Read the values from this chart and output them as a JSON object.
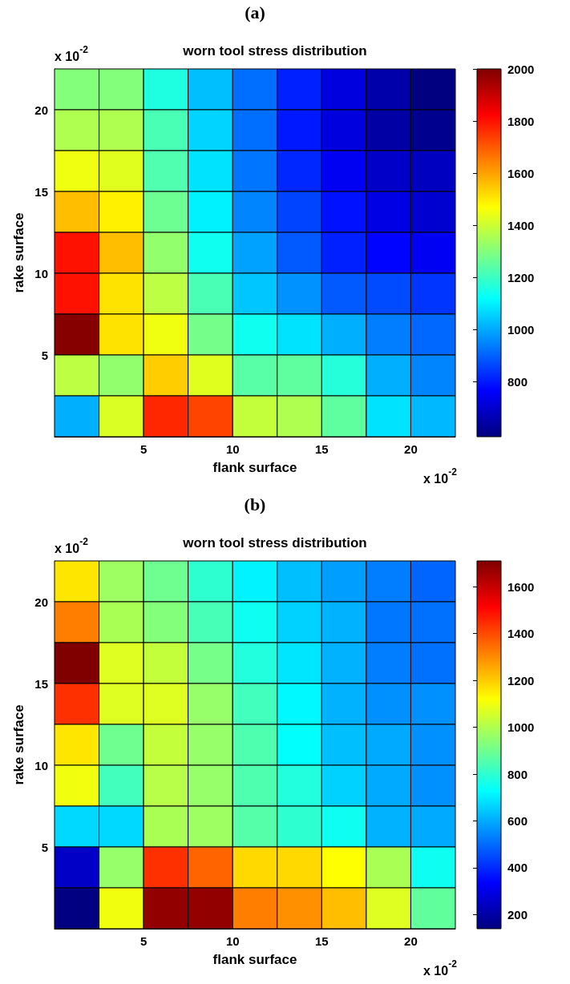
{
  "chart_data": [
    {
      "type": "heatmap",
      "title": "worn tool stress distribution",
      "xlabel": "flank surface",
      "ylabel": "rake surface",
      "annotations": [
        "(a)",
        "x 10$^{-2}$",
        "x 10$^{-2}$"
      ],
      "xlim": [
        0,
        22.5
      ],
      "xticks": [
        5,
        10,
        15,
        20
      ],
      "ylim": [
        0,
        22.5
      ],
      "yticks": [
        5,
        10,
        15,
        20
      ],
      "clim": [
        590,
        2000
      ],
      "cticks": [
        800,
        1000,
        1200,
        1400,
        1600,
        1800,
        2000
      ],
      "cells": [
        [
          1300,
          1300,
          1160,
          1030,
          920,
          810,
          720,
          650,
          590
        ],
        [
          1360,
          1360,
          1220,
          1060,
          920,
          800,
          720,
          640,
          610
        ],
        [
          1450,
          1430,
          1230,
          1080,
          930,
          820,
          750,
          690,
          680
        ],
        [
          1560,
          1490,
          1270,
          1100,
          950,
          860,
          790,
          730,
          700
        ],
        [
          1800,
          1560,
          1320,
          1140,
          990,
          890,
          810,
          770,
          750
        ],
        [
          1800,
          1510,
          1380,
          1220,
          1040,
          970,
          890,
          870,
          840
        ],
        [
          1990,
          1510,
          1450,
          1280,
          1140,
          1080,
          1010,
          940,
          910
        ],
        [
          1380,
          1320,
          1540,
          1430,
          1240,
          1250,
          1170,
          1010,
          950
        ],
        [
          1010,
          1420,
          1770,
          1730,
          1390,
          1360,
          1250,
          1080,
          1020
        ]
      ]
    },
    {
      "type": "heatmap",
      "title": "worn tool stress distribution",
      "xlabel": "flank surface",
      "ylabel": "rake surface",
      "annotations": [
        "(b)",
        "x 10$^{-2}$",
        "x 10$^{-2}$"
      ],
      "xlim": [
        0,
        22.5
      ],
      "xticks": [
        5,
        10,
        15,
        20
      ],
      "ylim": [
        0,
        22.5
      ],
      "yticks": [
        5,
        10,
        15,
        20
      ],
      "clim": [
        140,
        1710
      ],
      "cticks": [
        200,
        400,
        600,
        800,
        1000,
        1200,
        1400,
        1600
      ],
      "cells": [
        [
          1160,
          970,
          900,
          800,
          710,
          630,
          580,
          530,
          490
        ],
        [
          1320,
          990,
          930,
          840,
          750,
          660,
          610,
          520,
          510
        ],
        [
          1710,
          1070,
          1030,
          910,
          780,
          690,
          610,
          530,
          510
        ],
        [
          1440,
          1070,
          1070,
          960,
          830,
          720,
          610,
          560,
          560
        ],
        [
          1160,
          900,
          1030,
          960,
          850,
          730,
          630,
          600,
          560
        ],
        [
          1100,
          830,
          1010,
          960,
          850,
          780,
          660,
          600,
          560
        ],
        [
          670,
          670,
          990,
          970,
          860,
          800,
          750,
          610,
          600
        ],
        [
          250,
          960,
          1440,
          1360,
          1180,
          1180,
          1120,
          990,
          750
        ],
        [
          140,
          1100,
          1680,
          1680,
          1320,
          1290,
          1220,
          1070,
          880
        ]
      ]
    }
  ]
}
